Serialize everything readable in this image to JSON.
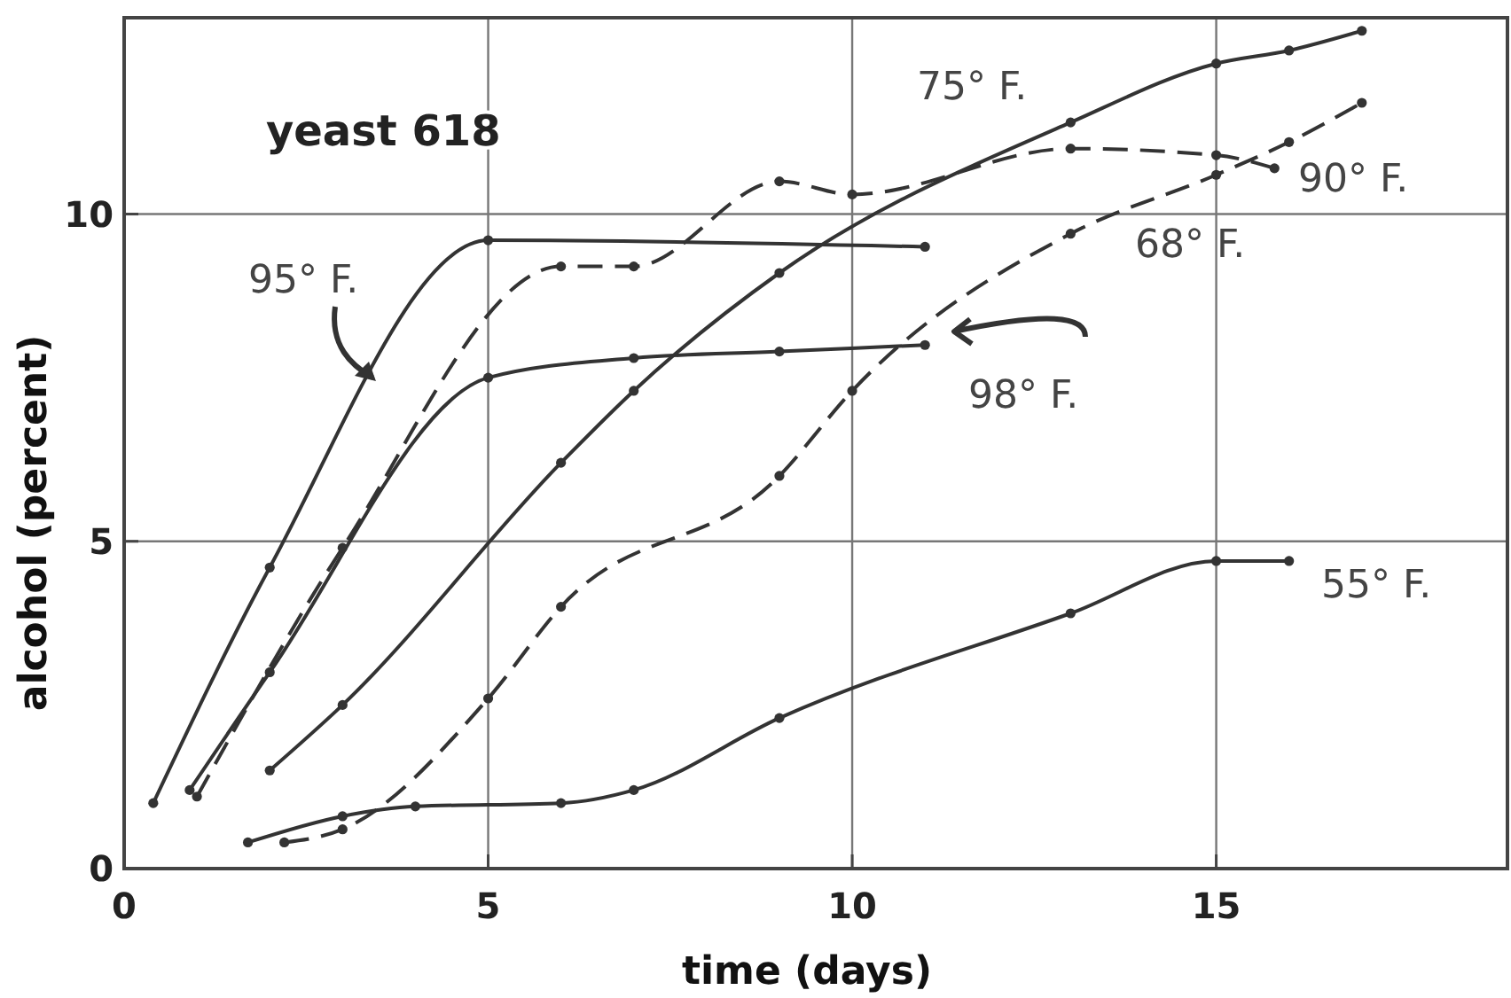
{
  "chart_data": {
    "type": "line",
    "xlabel": "time (days)",
    "ylabel": "alcohol (percent)",
    "annotations": [
      "yeast 618"
    ],
    "xlim": [
      0,
      19
    ],
    "ylim": [
      0,
      13
    ],
    "xticks": [
      0,
      5,
      10,
      15
    ],
    "yticks": [
      0,
      5,
      10
    ],
    "grid": true,
    "marker": "circle",
    "series": [
      {
        "name": "95° F.",
        "color": "#333333",
        "line_style": "solid",
        "x": [
          0.4,
          2,
          5,
          11
        ],
        "values": [
          1.0,
          4.6,
          9.6,
          9.5
        ]
      },
      {
        "name": "98° F.",
        "color": "#333333",
        "line_style": "solid",
        "x": [
          0.9,
          2,
          5,
          7,
          9,
          11
        ],
        "values": [
          1.2,
          3.0,
          7.5,
          7.8,
          7.9,
          8.0
        ]
      },
      {
        "name": "90° F.",
        "color": "#333333",
        "line_style": "dashed",
        "x": [
          1,
          3,
          6,
          7,
          9,
          10,
          13,
          15,
          15.8
        ],
        "values": [
          1.1,
          4.9,
          9.2,
          9.2,
          10.5,
          10.3,
          11.0,
          10.9,
          10.7
        ]
      },
      {
        "name": "75° F.",
        "color": "#333333",
        "line_style": "solid",
        "x": [
          2,
          3,
          6,
          7,
          9,
          13,
          15,
          16,
          17
        ],
        "values": [
          1.5,
          2.5,
          6.2,
          7.3,
          9.1,
          11.4,
          12.3,
          12.5,
          12.8
        ]
      },
      {
        "name": "68° F.",
        "color": "#333333",
        "line_style": "dashed",
        "x": [
          2.2,
          3,
          5,
          6,
          9,
          10,
          13,
          15,
          16,
          17
        ],
        "values": [
          0.4,
          0.6,
          2.6,
          4.0,
          6.0,
          7.3,
          9.7,
          10.6,
          11.1,
          11.7
        ]
      },
      {
        "name": "55° F.",
        "color": "#333333",
        "line_style": "solid",
        "x": [
          1.7,
          3,
          4,
          6,
          7,
          9,
          13,
          15,
          16
        ],
        "values": [
          0.4,
          0.8,
          0.95,
          1.0,
          1.2,
          2.3,
          3.9,
          4.7,
          4.7
        ]
      }
    ]
  }
}
